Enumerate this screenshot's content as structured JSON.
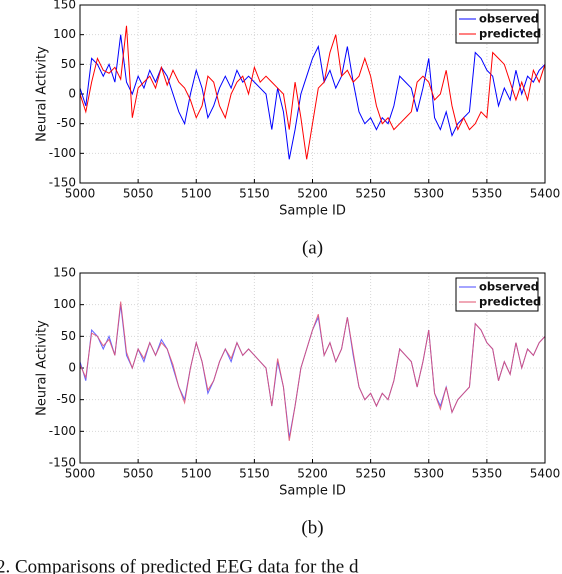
{
  "chart_data": [
    {
      "type": "line",
      "xlabel": "Sample ID",
      "ylabel": "Neural Activity",
      "label": "(a)",
      "x": [
        5000,
        5005,
        5010,
        5015,
        5020,
        5025,
        5030,
        5035,
        5040,
        5045,
        5050,
        5055,
        5060,
        5065,
        5070,
        5075,
        5080,
        5085,
        5090,
        5095,
        5100,
        5105,
        5110,
        5115,
        5120,
        5125,
        5130,
        5135,
        5140,
        5145,
        5150,
        5155,
        5160,
        5165,
        5170,
        5175,
        5180,
        5185,
        5190,
        5195,
        5200,
        5205,
        5210,
        5215,
        5220,
        5225,
        5230,
        5235,
        5240,
        5245,
        5250,
        5255,
        5260,
        5265,
        5270,
        5275,
        5280,
        5285,
        5290,
        5295,
        5300,
        5305,
        5310,
        5315,
        5320,
        5325,
        5330,
        5335,
        5340,
        5345,
        5350,
        5355,
        5360,
        5365,
        5370,
        5375,
        5380,
        5385,
        5390,
        5395,
        5400
      ],
      "series": [
        {
          "name": "observed",
          "color": "#0000ff",
          "values": [
            10,
            -20,
            60,
            50,
            30,
            50,
            20,
            100,
            20,
            0,
            30,
            10,
            40,
            20,
            45,
            30,
            0,
            -30,
            -50,
            0,
            40,
            10,
            -40,
            -20,
            10,
            30,
            10,
            40,
            20,
            30,
            20,
            10,
            0,
            -60,
            10,
            -30,
            -110,
            -60,
            0,
            30,
            60,
            80,
            20,
            40,
            10,
            30,
            80,
            20,
            -30,
            -50,
            -40,
            -60,
            -40,
            -50,
            -20,
            30,
            20,
            10,
            -30,
            10,
            60,
            -40,
            -60,
            -30,
            -70,
            -50,
            -40,
            -30,
            70,
            60,
            40,
            30,
            -20,
            10,
            -10,
            40,
            0,
            30,
            20,
            40,
            50
          ]
        },
        {
          "name": "predicted",
          "color": "#ff0000",
          "values": [
            0,
            -30,
            20,
            60,
            40,
            35,
            45,
            25,
            115,
            -40,
            10,
            20,
            30,
            10,
            45,
            15,
            40,
            20,
            10,
            -10,
            -40,
            -20,
            30,
            20,
            -20,
            -40,
            0,
            20,
            30,
            0,
            45,
            20,
            30,
            20,
            10,
            0,
            -60,
            20,
            -40,
            -110,
            -50,
            10,
            20,
            70,
            100,
            30,
            40,
            20,
            30,
            60,
            30,
            -20,
            -50,
            -40,
            -60,
            -50,
            -40,
            -30,
            20,
            30,
            20,
            -10,
            0,
            40,
            -20,
            -60,
            -40,
            -60,
            -50,
            -30,
            -40,
            70,
            60,
            50,
            20,
            -10,
            20,
            -10,
            40,
            20,
            50
          ]
        }
      ],
      "xlim": [
        5000,
        5400
      ],
      "xticks": [
        5000,
        5050,
        5100,
        5150,
        5200,
        5250,
        5300,
        5350,
        5400
      ],
      "ylim": [
        -150,
        150
      ],
      "yticks": [
        -150,
        -100,
        -50,
        0,
        50,
        100,
        150
      ],
      "grid": true,
      "legend": "upper right"
    },
    {
      "type": "line",
      "xlabel": "Sample ID",
      "ylabel": "Neural Activity",
      "label": "(b)",
      "x": [
        5000,
        5005,
        5010,
        5015,
        5020,
        5025,
        5030,
        5035,
        5040,
        5045,
        5050,
        5055,
        5060,
        5065,
        5070,
        5075,
        5080,
        5085,
        5090,
        5095,
        5100,
        5105,
        5110,
        5115,
        5120,
        5125,
        5130,
        5135,
        5140,
        5145,
        5150,
        5155,
        5160,
        5165,
        5170,
        5175,
        5180,
        5185,
        5190,
        5195,
        5200,
        5205,
        5210,
        5215,
        5220,
        5225,
        5230,
        5235,
        5240,
        5245,
        5250,
        5255,
        5260,
        5265,
        5270,
        5275,
        5280,
        5285,
        5290,
        5295,
        5300,
        5305,
        5310,
        5315,
        5320,
        5325,
        5330,
        5335,
        5340,
        5345,
        5350,
        5355,
        5360,
        5365,
        5370,
        5375,
        5380,
        5385,
        5390,
        5395,
        5400
      ],
      "series": [
        {
          "name": "observed",
          "color": "#4a4aff",
          "values": [
            10,
            -20,
            60,
            50,
            30,
            50,
            20,
            100,
            20,
            0,
            30,
            10,
            40,
            20,
            45,
            30,
            0,
            -30,
            -50,
            0,
            40,
            10,
            -40,
            -20,
            10,
            30,
            10,
            40,
            20,
            30,
            20,
            10,
            0,
            -60,
            10,
            -30,
            -110,
            -60,
            0,
            30,
            60,
            80,
            20,
            40,
            10,
            30,
            80,
            20,
            -30,
            -50,
            -40,
            -60,
            -40,
            -50,
            -20,
            30,
            20,
            10,
            -30,
            10,
            60,
            -40,
            -60,
            -30,
            -70,
            -50,
            -40,
            -30,
            70,
            60,
            40,
            30,
            -20,
            10,
            -10,
            40,
            0,
            30,
            20,
            40,
            50
          ]
        },
        {
          "name": "predicted",
          "color": "#e0506e",
          "values": [
            5,
            -15,
            55,
            50,
            35,
            45,
            20,
            105,
            25,
            0,
            30,
            15,
            40,
            20,
            40,
            30,
            5,
            -30,
            -55,
            0,
            40,
            10,
            -35,
            -20,
            10,
            30,
            15,
            40,
            20,
            30,
            20,
            10,
            0,
            -60,
            15,
            -30,
            -115,
            -60,
            0,
            30,
            60,
            85,
            20,
            40,
            10,
            30,
            80,
            25,
            -30,
            -50,
            -40,
            -60,
            -40,
            -50,
            -20,
            30,
            20,
            10,
            -30,
            10,
            60,
            -40,
            -65,
            -30,
            -70,
            -50,
            -40,
            -30,
            70,
            60,
            40,
            30,
            -20,
            10,
            -10,
            40,
            0,
            30,
            20,
            40,
            50
          ]
        }
      ],
      "xlim": [
        5000,
        5400
      ],
      "xticks": [
        5000,
        5050,
        5100,
        5150,
        5200,
        5250,
        5300,
        5350,
        5400
      ],
      "ylim": [
        -150,
        150
      ],
      "yticks": [
        -150,
        -100,
        -50,
        0,
        50,
        100,
        150
      ],
      "grid": true,
      "legend": "upper right"
    }
  ],
  "caption": "2. Comparisons of predicted EEG data for the d"
}
